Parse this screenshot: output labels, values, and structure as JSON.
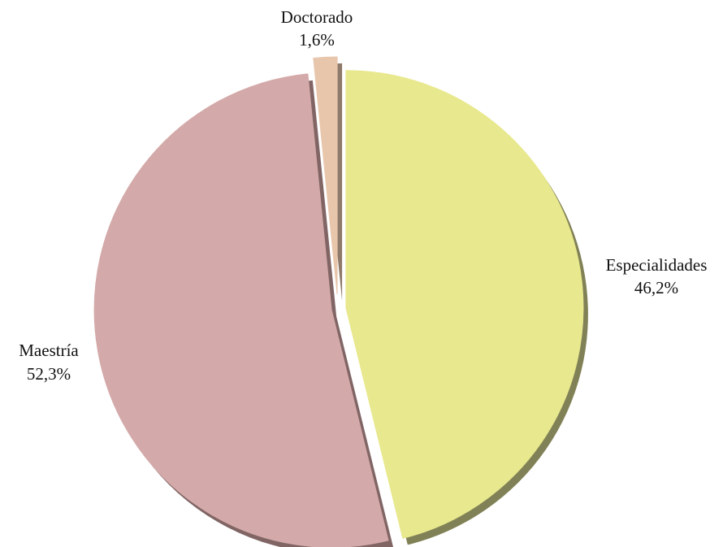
{
  "chart_data": {
    "type": "pie",
    "title": "",
    "slices": [
      {
        "label": "Especialidades",
        "value": 46.2,
        "value_label": "46,2%",
        "color": "#e8e88e",
        "shade": "#6b6b3a",
        "label_side": "right"
      },
      {
        "label": "Maestría",
        "value": 52.3,
        "value_label": "52,3%",
        "color": "#d4a9a9",
        "shade": "#6b4a4a",
        "label_side": "left"
      },
      {
        "label": "Doctorado",
        "value": 1.6,
        "value_label": "1,6%",
        "color": "#e8c6ac",
        "shade": "#7a6250",
        "label_side": "top"
      }
    ],
    "start_angle": "12 o'clock",
    "direction": "clockwise",
    "exploded": true,
    "legend": "none"
  }
}
